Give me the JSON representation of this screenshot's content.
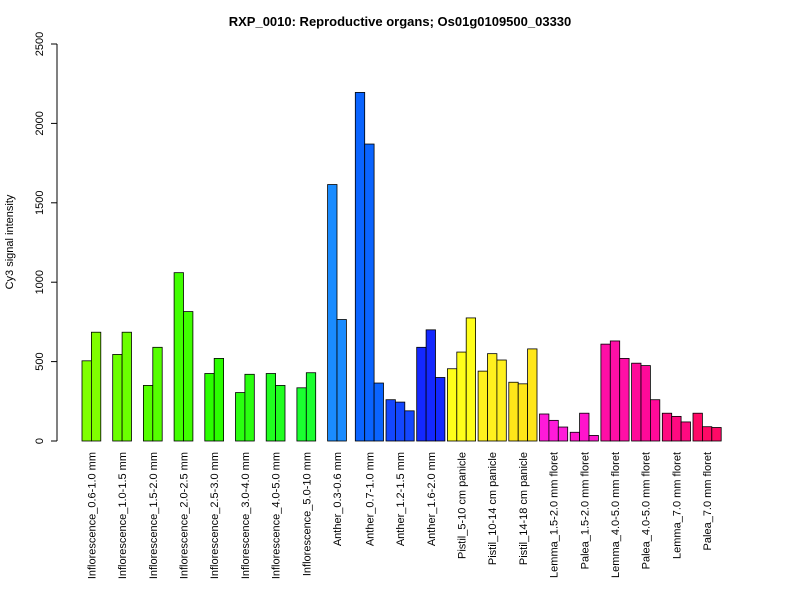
{
  "chart_data": {
    "type": "bar",
    "title": "RXP_0010: Reproductive organs; Os01g0109500_03330",
    "xlabel": "",
    "ylabel": "Cy3 signal intensity",
    "ylim": [
      0,
      2500
    ],
    "yticks": [
      0,
      500,
      1000,
      1500,
      2000,
      2500
    ],
    "grid": false,
    "legend": "none",
    "groups": [
      {
        "label": "Inflorescence_0.6-1.0 mm",
        "color": "#80ff00",
        "values": [
          505,
          685
        ]
      },
      {
        "label": "Inflorescence_1.0-1.5 mm",
        "color": "#6bff00",
        "values": [
          545,
          685
        ]
      },
      {
        "label": "Inflorescence_1.5-2.0 mm",
        "color": "#55ff00",
        "values": [
          350,
          590
        ]
      },
      {
        "label": "Inflorescence_2.0-2.5 mm",
        "color": "#40ff00",
        "values": [
          1060,
          815
        ]
      },
      {
        "label": "Inflorescence_2.5-3.0 mm",
        "color": "#2bff00",
        "values": [
          425,
          520
        ]
      },
      {
        "label": "Inflorescence_3.0-4.0 mm",
        "color": "#2aff10",
        "values": [
          305,
          420
        ]
      },
      {
        "label": "Inflorescence_4.0-5.0 mm",
        "color": "#20ff20",
        "values": [
          425,
          350
        ]
      },
      {
        "label": "Inflorescence_5.0-10 mm",
        "color": "#1aff30",
        "values": [
          335,
          430
        ]
      },
      {
        "label": "Anther_0.3-0.6 mm",
        "color": "#1a8cff",
        "values": [
          1615,
          765
        ]
      },
      {
        "label": "Anther_0.7-1.0 mm",
        "color": "#0a64ff",
        "values": [
          2195,
          1870,
          365
        ]
      },
      {
        "label": "Anther_1.2-1.5 mm",
        "color": "#1447ff",
        "values": [
          260,
          245,
          190
        ]
      },
      {
        "label": "Anther_1.6-2.0 mm",
        "color": "#1428ff",
        "values": [
          590,
          700,
          400
        ]
      },
      {
        "label": "Pistil_5-10 cm panicle",
        "color": "#ffff1a",
        "values": [
          455,
          560,
          775
        ]
      },
      {
        "label": "Pistil_10-14 cm panicle",
        "color": "#fff01e",
        "values": [
          440,
          550,
          510
        ]
      },
      {
        "label": "Pistil_14-18 cm panicle",
        "color": "#ffe619",
        "values": [
          370,
          360,
          580
        ]
      },
      {
        "label": "Lemma_1.5-2.0 mm floret",
        "color": "#ff1ad9",
        "values": [
          170,
          130,
          88
        ]
      },
      {
        "label": "Palea_1.5-2.0 mm floret",
        "color": "#ff14cc",
        "values": [
          55,
          175,
          35
        ]
      },
      {
        "label": "Lemma_4.0-5.0 mm floret",
        "color": "#ff0fa6",
        "values": [
          610,
          630,
          520
        ]
      },
      {
        "label": "Palea_4.0-5.0 mm floret",
        "color": "#ff0a99",
        "values": [
          490,
          475,
          260
        ]
      },
      {
        "label": "Lemma_7.0 mm floret",
        "color": "#ff0a80",
        "values": [
          175,
          155,
          120
        ]
      },
      {
        "label": "Palea_7.0 mm floret",
        "color": "#ff0a66",
        "values": [
          175,
          90,
          85
        ]
      }
    ]
  }
}
